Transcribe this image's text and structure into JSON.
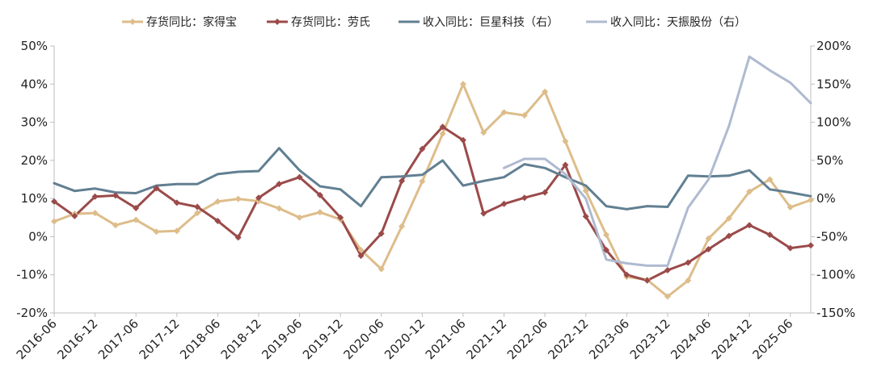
{
  "chart_data": {
    "type": "line",
    "title": "",
    "legend_position": "top",
    "x_labels": [
      "2016-06",
      "2016-12",
      "2017-06",
      "2017-12",
      "2018-06",
      "2018-12",
      "2019-06",
      "2019-12",
      "2020-06",
      "2020-12",
      "2021-06",
      "2021-12",
      "2022-06",
      "2022-12",
      "2023-06",
      "2023-12",
      "2024-06",
      "2024-12",
      "2025-06"
    ],
    "left_axis": {
      "min": -20,
      "max": 50,
      "step": 10,
      "tick_labels": [
        "-20%",
        "-10%",
        "0%",
        "10%",
        "20%",
        "30%",
        "40%",
        "50%"
      ]
    },
    "right_axis": {
      "min": -150,
      "max": 200,
      "step": 50,
      "tick_labels": [
        "-150%",
        "-100%",
        "-50%",
        "0%",
        "50%",
        "100%",
        "150%",
        "200%"
      ]
    },
    "series": [
      {
        "name": "存货同比：家得宝",
        "axis": "left",
        "color": "#DDBD8A",
        "marker": "diamond",
        "values": [
          4.0,
          6.0,
          6.2,
          3.0,
          4.4,
          1.3,
          1.5,
          6.2,
          9.2,
          9.9,
          9.3,
          7.4,
          5.0,
          6.4,
          4.5,
          -3.5,
          -8.5,
          2.7,
          14.5,
          27.0,
          40.0,
          27.3,
          32.6,
          31.8,
          38.0,
          25.0,
          12.0,
          0.5,
          -10.5,
          -11.3,
          -15.7,
          -11.5,
          -0.5,
          4.8,
          11.8,
          15.0,
          7.7,
          9.6
        ]
      },
      {
        "name": "存货同比：劳氏",
        "axis": "left",
        "color": "#9B4A4A",
        "marker": "diamond",
        "values": [
          9.2,
          5.4,
          10.5,
          10.8,
          7.5,
          12.7,
          8.9,
          7.8,
          4.1,
          -0.2,
          10.2,
          13.8,
          15.6,
          10.9,
          5.0,
          -5.0,
          0.8,
          14.6,
          23.0,
          28.8,
          25.3,
          6.1,
          8.6,
          10.2,
          11.6,
          18.8,
          5.3,
          -3.5,
          -10.0,
          -11.5,
          -8.8,
          -6.8,
          -3.3,
          0.2,
          3.0,
          0.5,
          -3.0,
          -2.3
        ]
      },
      {
        "name": "收入同比：巨星科技（右）",
        "axis": "right",
        "color": "#627F92",
        "marker": "none",
        "values": [
          20,
          10,
          13,
          8,
          7,
          17,
          19,
          19,
          32,
          35,
          36,
          66,
          37,
          16,
          12,
          -10,
          28,
          29,
          31,
          50,
          17,
          23,
          28,
          45,
          40,
          28,
          17,
          -10,
          -14,
          -10,
          -11,
          30,
          29,
          30,
          37,
          12,
          8,
          3
        ]
      },
      {
        "name": "收入同比：天振股份（右）",
        "axis": "right",
        "color": "#AFBAD0",
        "marker": "none",
        "values": [
          null,
          null,
          null,
          null,
          null,
          null,
          null,
          null,
          null,
          null,
          null,
          null,
          null,
          null,
          null,
          null,
          null,
          null,
          null,
          null,
          null,
          null,
          40,
          52,
          52,
          32,
          0,
          -80,
          -85,
          -88,
          -88,
          -12,
          25,
          95,
          186,
          168,
          152,
          125
        ]
      }
    ]
  }
}
